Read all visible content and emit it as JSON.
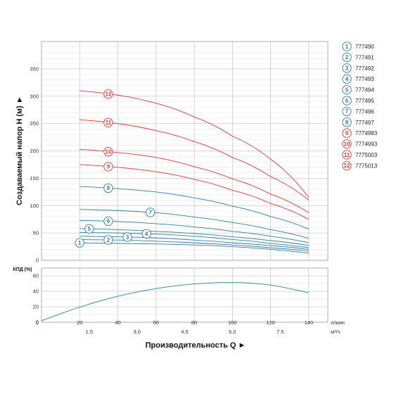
{
  "chart_data": [
    {
      "type": "line",
      "title": "",
      "ylabel": "Создаваемый напор H (м) ►",
      "xlabel": "",
      "xlim": [
        0,
        150
      ],
      "ylim": [
        0,
        400
      ],
      "xticks": [
        20,
        40,
        60,
        80,
        100,
        120,
        140
      ],
      "yticks": [
        0,
        50,
        100,
        150,
        200,
        250,
        300,
        350
      ],
      "grid": true,
      "colors": {
        "blue": "#2e7d9a",
        "red": "#d93636"
      },
      "series": [
        {
          "marker": "1",
          "name": "777490",
          "color": "#2e7d9a",
          "x": [
            20,
            40,
            60,
            80,
            100,
            120,
            140
          ],
          "y": [
            32,
            31,
            30,
            28,
            25,
            20,
            13
          ]
        },
        {
          "marker": "2",
          "name": "777491",
          "color": "#2e7d9a",
          "x": [
            20,
            40,
            60,
            80,
            100,
            120,
            140
          ],
          "y": [
            38,
            37,
            35,
            32,
            28,
            23,
            17
          ]
        },
        {
          "marker": "3",
          "name": "777492",
          "color": "#2e7d9a",
          "x": [
            20,
            40,
            60,
            80,
            100,
            120,
            140
          ],
          "y": [
            44,
            43,
            41,
            37,
            32,
            27,
            20
          ]
        },
        {
          "marker": "4",
          "name": "777493",
          "color": "#2e7d9a",
          "x": [
            20,
            40,
            60,
            80,
            100,
            120,
            140
          ],
          "y": [
            51,
            50,
            48,
            44,
            38,
            31,
            23
          ]
        },
        {
          "marker": "5",
          "name": "777494",
          "color": "#2e7d9a",
          "x": [
            20,
            40,
            60,
            80,
            100,
            120,
            140
          ],
          "y": [
            58,
            56,
            53,
            49,
            43,
            36,
            27
          ]
        },
        {
          "marker": "6",
          "name": "777495",
          "color": "#2e7d9a",
          "x": [
            20,
            40,
            60,
            80,
            100,
            120,
            140
          ],
          "y": [
            73,
            71,
            67,
            61,
            53,
            44,
            32
          ]
        },
        {
          "marker": "7",
          "name": "777496",
          "color": "#2e7d9a",
          "x": [
            20,
            40,
            60,
            80,
            100,
            120,
            140
          ],
          "y": [
            93,
            91,
            87,
            79,
            69,
            56,
            40
          ]
        },
        {
          "marker": "8",
          "name": "777497",
          "color": "#2e7d9a",
          "x": [
            20,
            40,
            60,
            80,
            100,
            120,
            140
          ],
          "y": [
            135,
            131,
            125,
            114,
            99,
            80,
            57
          ]
        },
        {
          "marker": "9",
          "name": "7774983",
          "color": "#d93636",
          "x": [
            20,
            40,
            60,
            80,
            100,
            120,
            140
          ],
          "y": [
            175,
            170,
            162,
            148,
            128,
            104,
            75
          ]
        },
        {
          "marker": "10",
          "name": "7774993",
          "color": "#d93636",
          "x": [
            20,
            40,
            60,
            80,
            100,
            120,
            140
          ],
          "y": [
            203,
            197,
            188,
            171,
            149,
            121,
            87
          ]
        },
        {
          "marker": "11",
          "name": "7775003",
          "color": "#d93636",
          "x": [
            20,
            40,
            60,
            80,
            100,
            120,
            140
          ],
          "y": [
            257,
            250,
            237,
            217,
            188,
            153,
            110
          ]
        },
        {
          "marker": "12",
          "name": "7775013",
          "color": "#d93636",
          "x": [
            20,
            40,
            60,
            80,
            100,
            120,
            140
          ],
          "y": [
            310,
            302,
            287,
            262,
            227,
            185,
            115
          ]
        }
      ]
    },
    {
      "type": "line",
      "title": "",
      "ylabel": "КПД (%)",
      "xlabel": "Производительность Q ►",
      "xlim": [
        0,
        150
      ],
      "ylim": [
        0,
        70
      ],
      "yticks": [
        0,
        20,
        40,
        60
      ],
      "xticks": [
        20,
        40,
        60,
        80,
        100,
        120,
        140
      ],
      "x_unit_label": "л/мин",
      "x2_ticks": [
        "1.5",
        "3.0",
        "4.5",
        "6.0",
        "7.5"
      ],
      "x2_unit_label": "м³/ч",
      "grid": true,
      "series": [
        {
          "name": "",
          "color": "#2e7d9a",
          "x": [
            0,
            20,
            40,
            60,
            80,
            100,
            120,
            140
          ],
          "y": [
            2,
            20,
            34,
            44,
            50,
            52,
            49,
            38
          ]
        }
      ]
    }
  ],
  "legend": [
    {
      "marker": "1",
      "label": "777490",
      "color": "#2e7d9a"
    },
    {
      "marker": "2",
      "label": "777491",
      "color": "#2e7d9a"
    },
    {
      "marker": "3",
      "label": "777492",
      "color": "#2e7d9a"
    },
    {
      "marker": "4",
      "label": "777493",
      "color": "#2e7d9a"
    },
    {
      "marker": "5",
      "label": "777494",
      "color": "#2e7d9a"
    },
    {
      "marker": "6",
      "label": "777495",
      "color": "#2e7d9a"
    },
    {
      "marker": "7",
      "label": "777496",
      "color": "#2e7d9a"
    },
    {
      "marker": "8",
      "label": "777497",
      "color": "#2e7d9a"
    },
    {
      "marker": "9",
      "label": "7774983",
      "color": "#d93636"
    },
    {
      "marker": "10",
      "label": "7774993",
      "color": "#d93636"
    },
    {
      "marker": "11",
      "label": "7775003",
      "color": "#d93636"
    },
    {
      "marker": "12",
      "label": "7775013",
      "color": "#d93636"
    }
  ]
}
